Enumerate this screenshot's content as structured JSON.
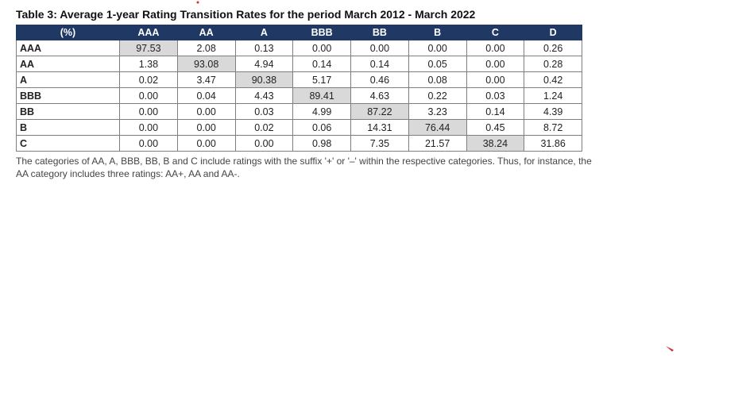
{
  "title": "Table 3: Average 1-year Rating Transition Rates for the period March 2012 - March 2022",
  "table": {
    "header": [
      "(%)",
      "AAA",
      "AA",
      "A",
      "BBB",
      "BB",
      "B",
      "C",
      "D"
    ],
    "rows": [
      [
        "AAA",
        "97.53",
        "2.08",
        "0.13",
        "0.00",
        "0.00",
        "0.00",
        "0.00",
        "0.26"
      ],
      [
        "AA",
        "1.38",
        "93.08",
        "4.94",
        "0.14",
        "0.14",
        "0.05",
        "0.00",
        "0.28"
      ],
      [
        "A",
        "0.02",
        "3.47",
        "90.38",
        "5.17",
        "0.46",
        "0.08",
        "0.00",
        "0.42"
      ],
      [
        "BBB",
        "0.00",
        "0.04",
        "4.43",
        "89.41",
        "4.63",
        "0.22",
        "0.03",
        "1.24"
      ],
      [
        "BB",
        "0.00",
        "0.00",
        "0.03",
        "4.99",
        "87.22",
        "3.23",
        "0.14",
        "4.39"
      ],
      [
        "B",
        "0.00",
        "0.00",
        "0.02",
        "0.06",
        "14.31",
        "76.44",
        "0.45",
        "8.72"
      ],
      [
        "C",
        "0.00",
        "0.00",
        "0.00",
        "0.98",
        "7.35",
        "21.57",
        "38.24",
        "31.86"
      ]
    ]
  },
  "note": "The categories of AA, A, BBB, BB, B and C include ratings with the suffix '+' or '–' within the respective categories. Thus, for instance, the AA category includes three ratings: AA+, AA and AA-."
}
